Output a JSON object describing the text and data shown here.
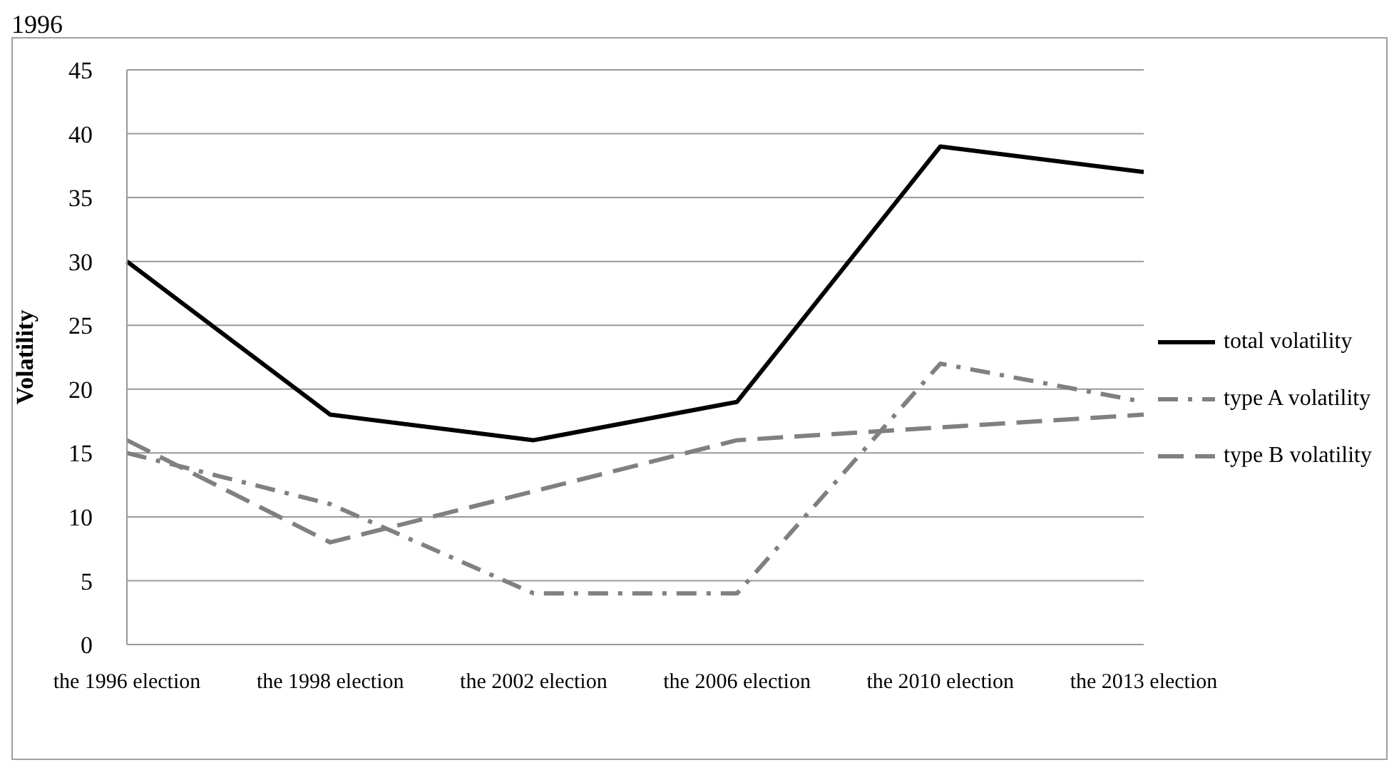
{
  "chart_data": {
    "type": "line",
    "ylabel": "Volatility",
    "annotations": [
      "1996"
    ],
    "categories": [
      "the 1996 election",
      "the 1998 election",
      "the 2002 election",
      "the 2006 election",
      "the 2010 election",
      "the 2013 election"
    ],
    "series": [
      {
        "name": "total volatility",
        "color": "#000000",
        "line_style": "solid",
        "values": [
          30,
          18,
          16,
          19,
          39,
          37
        ]
      },
      {
        "name": "type A volatility",
        "color": "#808080",
        "line_style": "dash-dot",
        "values": [
          15,
          11,
          4,
          4,
          22,
          19
        ]
      },
      {
        "name": "type B volatility",
        "color": "#808080",
        "line_style": "dashed",
        "values": [
          16,
          8,
          12,
          16,
          17,
          18
        ]
      }
    ],
    "ylim": [
      0,
      45
    ],
    "yticks": [
      0,
      5,
      10,
      15,
      20,
      25,
      30,
      35,
      40,
      45
    ],
    "grid": "y",
    "legend": "right",
    "marker": "none"
  }
}
